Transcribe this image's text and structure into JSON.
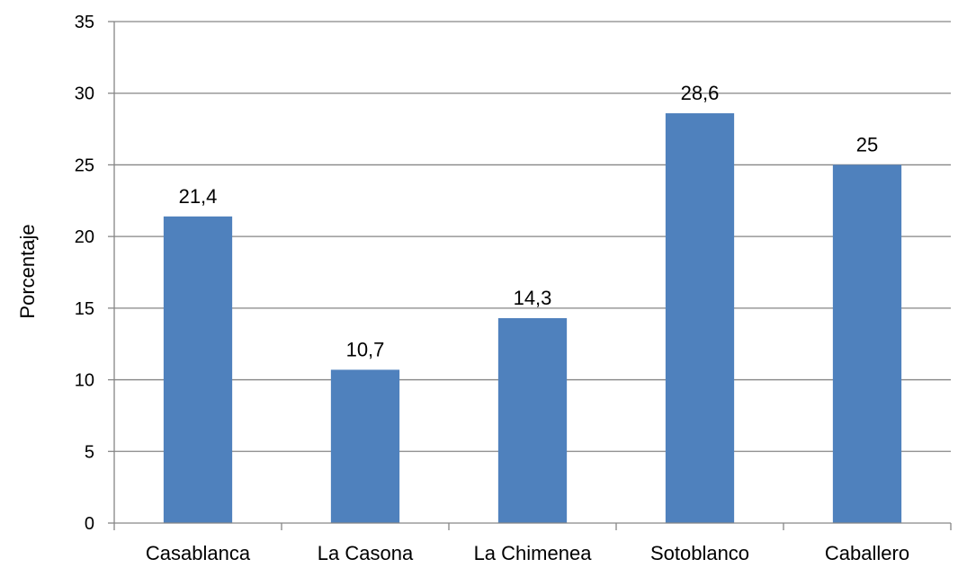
{
  "chart_data": {
    "type": "bar",
    "title": "",
    "xlabel": "",
    "ylabel": "Porcentaje",
    "categories": [
      "Casablanca",
      "La Casona",
      "La Chimenea",
      "Sotoblanco",
      "Caballero"
    ],
    "values": [
      21.4,
      10.7,
      14.3,
      28.6,
      25
    ],
    "data_labels": [
      "21,4",
      "10,7",
      "14,3",
      "28,6",
      "25"
    ],
    "ylim": [
      0,
      35
    ],
    "yticks": [
      0,
      5,
      10,
      15,
      20,
      25,
      30,
      35
    ],
    "grid": true,
    "legend": "none",
    "colors": {
      "bar": "#4f81bd",
      "grid": "#868686",
      "axis": "#868686"
    }
  }
}
